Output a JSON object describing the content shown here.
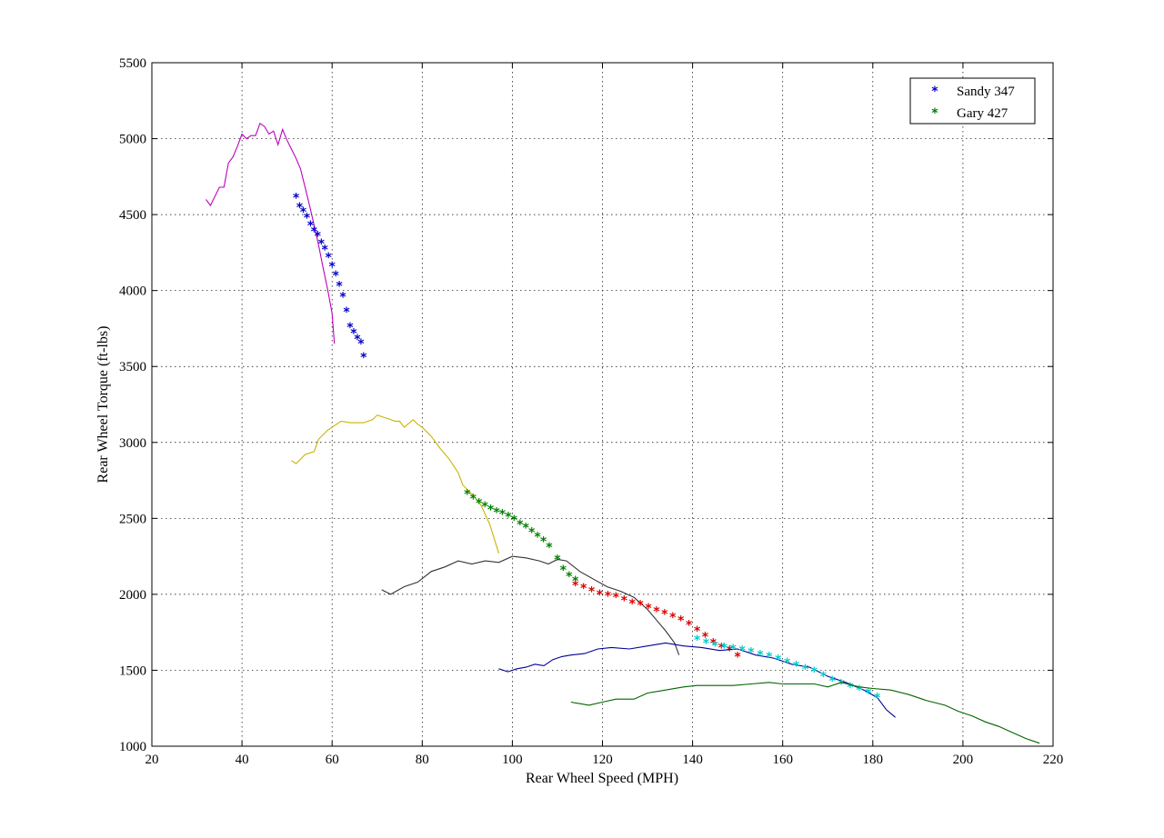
{
  "chart_data": {
    "type": "line",
    "xlabel": "Rear Wheel Speed (MPH)",
    "ylabel": "Rear Wheel Torque (ft-lbs)",
    "xlim": [
      20,
      220
    ],
    "ylim": [
      1000,
      5500
    ],
    "xticks": [
      20,
      40,
      60,
      80,
      100,
      120,
      140,
      160,
      180,
      200,
      220
    ],
    "yticks": [
      1000,
      1500,
      2000,
      2500,
      3000,
      3500,
      4000,
      4500,
      5000,
      5500
    ],
    "grid": true,
    "legend_position": "top-right",
    "legend": [
      {
        "label": "Sandy 347",
        "color": "#0000cc"
      },
      {
        "label": "Gary 427",
        "color": "#008000"
      }
    ],
    "series": [
      {
        "style": "line",
        "color": "#bf00bf",
        "points": [
          [
            32,
            4600
          ],
          [
            33,
            4560
          ],
          [
            35,
            4680
          ],
          [
            36,
            4680
          ],
          [
            37,
            4840
          ],
          [
            38,
            4880
          ],
          [
            39,
            4950
          ],
          [
            40,
            5030
          ],
          [
            41,
            5000
          ],
          [
            42,
            5020
          ],
          [
            43,
            5020
          ],
          [
            44,
            5100
          ],
          [
            45,
            5080
          ],
          [
            46,
            5030
          ],
          [
            47,
            5050
          ],
          [
            48,
            4960
          ],
          [
            49,
            5060
          ],
          [
            50,
            4990
          ],
          [
            51,
            4930
          ],
          [
            52,
            4870
          ],
          [
            53,
            4800
          ],
          [
            54,
            4680
          ],
          [
            55,
            4560
          ],
          [
            56,
            4430
          ],
          [
            57,
            4300
          ],
          [
            58,
            4150
          ],
          [
            59,
            4010
          ],
          [
            60,
            3850
          ],
          [
            60.5,
            3650
          ]
        ]
      },
      {
        "style": "marker",
        "color": "#0000cc",
        "points": [
          [
            52,
            4610
          ],
          [
            52.8,
            4550
          ],
          [
            53.6,
            4520
          ],
          [
            54.4,
            4480
          ],
          [
            55.2,
            4430
          ],
          [
            56,
            4390
          ],
          [
            56.8,
            4360
          ],
          [
            57.6,
            4310
          ],
          [
            58.4,
            4270
          ],
          [
            59.2,
            4220
          ],
          [
            60,
            4160
          ],
          [
            60.8,
            4100
          ],
          [
            61.6,
            4030
          ],
          [
            62.4,
            3960
          ],
          [
            63.2,
            3860
          ],
          [
            64,
            3760
          ],
          [
            64.8,
            3720
          ],
          [
            65.6,
            3680
          ],
          [
            66.4,
            3650
          ],
          [
            67,
            3560
          ]
        ]
      },
      {
        "style": "line",
        "color": "#c8b400",
        "points": [
          [
            51,
            2880
          ],
          [
            52,
            2860
          ],
          [
            54,
            2920
          ],
          [
            56,
            2940
          ],
          [
            57,
            3020
          ],
          [
            59,
            3080
          ],
          [
            61,
            3120
          ],
          [
            62,
            3140
          ],
          [
            64,
            3130
          ],
          [
            65,
            3130
          ],
          [
            67,
            3130
          ],
          [
            69,
            3150
          ],
          [
            70,
            3180
          ],
          [
            72,
            3160
          ],
          [
            74,
            3140
          ],
          [
            75,
            3140
          ],
          [
            76,
            3100
          ],
          [
            78,
            3150
          ],
          [
            79,
            3120
          ],
          [
            80,
            3100
          ],
          [
            82,
            3040
          ],
          [
            84,
            2960
          ],
          [
            86,
            2890
          ],
          [
            88,
            2800
          ],
          [
            89,
            2720
          ],
          [
            91,
            2660
          ],
          [
            93,
            2590
          ],
          [
            95,
            2460
          ],
          [
            97,
            2270
          ]
        ]
      },
      {
        "style": "marker",
        "color": "#008000",
        "points": [
          [
            90,
            2660
          ],
          [
            91.3,
            2630
          ],
          [
            92.6,
            2600
          ],
          [
            93.9,
            2580
          ],
          [
            95.2,
            2560
          ],
          [
            96.5,
            2540
          ],
          [
            97.8,
            2530
          ],
          [
            99.1,
            2510
          ],
          [
            100.4,
            2490
          ],
          [
            101.7,
            2460
          ],
          [
            103,
            2440
          ],
          [
            104.3,
            2410
          ],
          [
            105.6,
            2380
          ],
          [
            106.9,
            2350
          ],
          [
            108.2,
            2310
          ],
          [
            110,
            2230
          ],
          [
            111.3,
            2160
          ],
          [
            112.6,
            2120
          ],
          [
            114,
            2090
          ]
        ]
      },
      {
        "style": "line",
        "color": "#333333",
        "points": [
          [
            71,
            2030
          ],
          [
            73,
            2000
          ],
          [
            76,
            2050
          ],
          [
            79,
            2080
          ],
          [
            82,
            2150
          ],
          [
            85,
            2180
          ],
          [
            88,
            2220
          ],
          [
            91,
            2200
          ],
          [
            94,
            2220
          ],
          [
            97,
            2210
          ],
          [
            100,
            2250
          ],
          [
            103,
            2240
          ],
          [
            106,
            2220
          ],
          [
            108,
            2200
          ],
          [
            110,
            2230
          ],
          [
            112,
            2220
          ],
          [
            115,
            2150
          ],
          [
            118,
            2100
          ],
          [
            121,
            2050
          ],
          [
            124,
            2020
          ],
          [
            127,
            1980
          ],
          [
            130,
            1900
          ],
          [
            132,
            1830
          ],
          [
            134,
            1760
          ],
          [
            136,
            1680
          ],
          [
            137,
            1600
          ]
        ]
      },
      {
        "style": "marker",
        "color": "#dd0000",
        "points": [
          [
            114,
            2060
          ],
          [
            115.8,
            2040
          ],
          [
            117.6,
            2020
          ],
          [
            119.4,
            2000
          ],
          [
            121.2,
            1990
          ],
          [
            123,
            1980
          ],
          [
            124.8,
            1960
          ],
          [
            126.6,
            1940
          ],
          [
            128.4,
            1930
          ],
          [
            130.2,
            1910
          ],
          [
            132,
            1890
          ],
          [
            133.8,
            1870
          ],
          [
            135.6,
            1850
          ],
          [
            137.4,
            1830
          ],
          [
            139.2,
            1800
          ],
          [
            141,
            1760
          ],
          [
            142.8,
            1720
          ],
          [
            144.6,
            1680
          ],
          [
            146.4,
            1650
          ],
          [
            148.2,
            1630
          ],
          [
            150,
            1590
          ]
        ]
      },
      {
        "style": "line",
        "color": "#000099",
        "points": [
          [
            97,
            1510
          ],
          [
            99,
            1490
          ],
          [
            101,
            1510
          ],
          [
            103,
            1520
          ],
          [
            105,
            1540
          ],
          [
            107,
            1530
          ],
          [
            109,
            1570
          ],
          [
            111,
            1590
          ],
          [
            113,
            1600
          ],
          [
            116,
            1610
          ],
          [
            119,
            1640
          ],
          [
            122,
            1650
          ],
          [
            126,
            1640
          ],
          [
            130,
            1660
          ],
          [
            134,
            1680
          ],
          [
            138,
            1660
          ],
          [
            142,
            1650
          ],
          [
            146,
            1630
          ],
          [
            150,
            1640
          ],
          [
            154,
            1600
          ],
          [
            158,
            1580
          ],
          [
            162,
            1540
          ],
          [
            166,
            1520
          ],
          [
            170,
            1460
          ],
          [
            174,
            1420
          ],
          [
            178,
            1370
          ],
          [
            181,
            1320
          ],
          [
            183,
            1240
          ],
          [
            185,
            1190
          ]
        ]
      },
      {
        "style": "marker",
        "color": "#00cccc",
        "points": [
          [
            141,
            1700
          ],
          [
            143,
            1680
          ],
          [
            145,
            1660
          ],
          [
            147,
            1650
          ],
          [
            149,
            1640
          ],
          [
            151,
            1630
          ],
          [
            153,
            1620
          ],
          [
            155,
            1600
          ],
          [
            157,
            1590
          ],
          [
            159,
            1570
          ],
          [
            161,
            1550
          ],
          [
            163,
            1530
          ],
          [
            165,
            1510
          ],
          [
            167,
            1490
          ],
          [
            169,
            1460
          ],
          [
            171,
            1430
          ],
          [
            173,
            1410
          ],
          [
            175,
            1390
          ],
          [
            177,
            1370
          ],
          [
            179,
            1350
          ],
          [
            181,
            1320
          ]
        ]
      },
      {
        "style": "line",
        "color": "#006400",
        "points": [
          [
            113,
            1290
          ],
          [
            117,
            1270
          ],
          [
            120,
            1290
          ],
          [
            123,
            1310
          ],
          [
            127,
            1310
          ],
          [
            130,
            1350
          ],
          [
            134,
            1370
          ],
          [
            138,
            1390
          ],
          [
            141,
            1400
          ],
          [
            145,
            1400
          ],
          [
            149,
            1400
          ],
          [
            153,
            1410
          ],
          [
            157,
            1420
          ],
          [
            160,
            1410
          ],
          [
            164,
            1410
          ],
          [
            167,
            1410
          ],
          [
            170,
            1390
          ],
          [
            173,
            1420
          ],
          [
            177,
            1390
          ],
          [
            180,
            1380
          ],
          [
            184,
            1370
          ],
          [
            188,
            1340
          ],
          [
            192,
            1300
          ],
          [
            196,
            1270
          ],
          [
            199,
            1230
          ],
          [
            202,
            1200
          ],
          [
            205,
            1160
          ],
          [
            208,
            1130
          ],
          [
            211,
            1090
          ],
          [
            214,
            1050
          ],
          [
            217,
            1020
          ]
        ]
      }
    ]
  }
}
